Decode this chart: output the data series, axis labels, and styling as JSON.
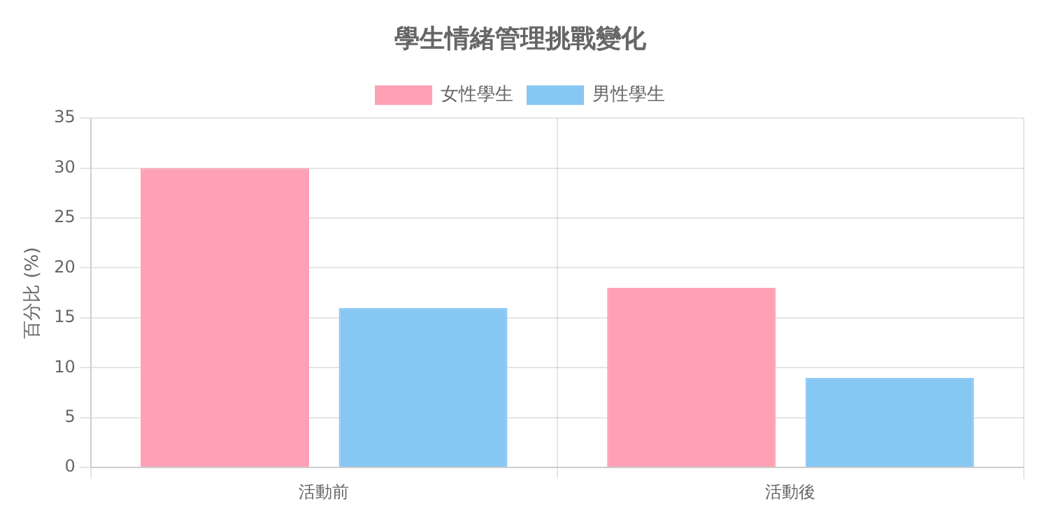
{
  "chart_data": {
    "type": "bar",
    "title": "學生情緒管理挑戰變化",
    "ylabel": "百分比 (%)",
    "categories": [
      "活動前",
      "活動後"
    ],
    "series": [
      {
        "name": "女性學生",
        "color": "#ffa1b5",
        "values": [
          30,
          18
        ]
      },
      {
        "name": "男性學生",
        "color": "#86c7f3",
        "values": [
          16,
          9
        ]
      }
    ],
    "ylim": [
      0,
      35
    ],
    "yticks": [
      0,
      5,
      10,
      15,
      20,
      25,
      30,
      35
    ],
    "grid": true,
    "legend": "top"
  }
}
